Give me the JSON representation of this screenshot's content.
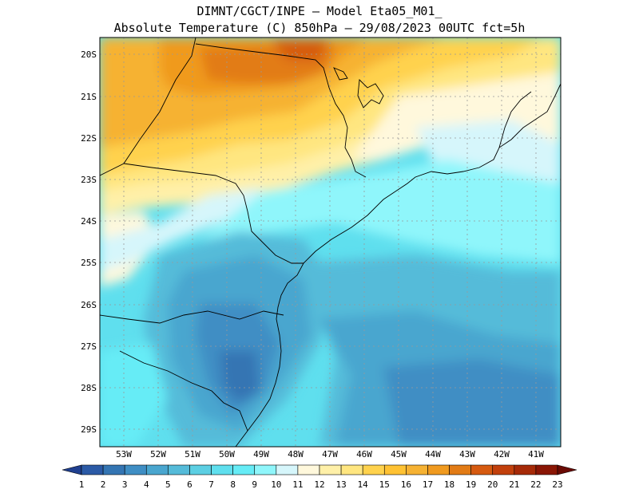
{
  "header": {
    "line1": "DIMNT/CGCT/INPE –  Model Eta05_M01_",
    "line2": "Absolute Temperature (C) 850hPa –  29/08/2023 00UTC fct=5h"
  },
  "map": {
    "lat_labels": [
      "20S",
      "21S",
      "22S",
      "23S",
      "24S",
      "25S",
      "26S",
      "27S",
      "28S",
      "29S"
    ],
    "lon_labels": [
      "53W",
      "52W",
      "51W",
      "50W",
      "49W",
      "48W",
      "47W",
      "46W",
      "45W",
      "44W",
      "43W",
      "42W",
      "41W"
    ],
    "colors": {
      "cold_dark": "#3b7fb5",
      "cold": "#4aa6cf",
      "mid": "#5bc3dc",
      "cyan": "#5fdfee",
      "cyan_light": "#8ff0f8",
      "pale": "#d6f6fb",
      "cream": "#fff8dc",
      "yellow": "#ffe680",
      "gold": "#ffd24d",
      "orange": "#f6b233",
      "deep_orange": "#f09a1f",
      "red_orange": "#e26a12"
    }
  },
  "colorbar": {
    "labels": [
      "1",
      "2",
      "3",
      "4",
      "5",
      "6",
      "7",
      "8",
      "9",
      "10",
      "11",
      "12",
      "13",
      "14",
      "15",
      "16",
      "17",
      "18",
      "19",
      "20",
      "21",
      "22",
      "23"
    ],
    "colors": [
      "#1f3f8f",
      "#2b5aa6",
      "#3475b3",
      "#3f8ec4",
      "#4aa6cf",
      "#55bbd9",
      "#5ccfe3",
      "#5fdfee",
      "#66ecf6",
      "#8ff6fb",
      "#d6f6fb",
      "#fff8dc",
      "#fff0a8",
      "#ffe680",
      "#ffd24d",
      "#ffc233",
      "#f6b233",
      "#f09a1f",
      "#e27b15",
      "#d65a10",
      "#c2400c",
      "#a62a08",
      "#8a1605",
      "#6a0a04"
    ]
  }
}
